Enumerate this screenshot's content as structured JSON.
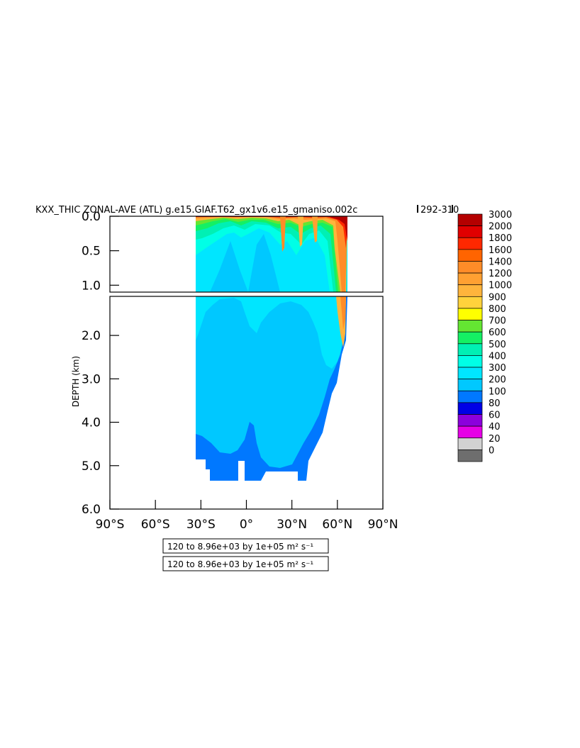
{
  "chart_data": {
    "type": "heatmap",
    "title": "KXX_THIC ZONAL-AVE (ATL) g.e15.GIAF.T62_gx1v6.e15_gmaniso.002c",
    "title_range": "292-310",
    "ylabel": "DEPTH (km)",
    "x_ticks": [
      "90°S",
      "60°S",
      "30°S",
      "0°",
      "30°N",
      "60°N",
      "90°N"
    ],
    "x_values": [
      -90,
      -60,
      -30,
      0,
      30,
      60,
      90
    ],
    "xlim": [
      -90,
      90
    ],
    "y_ticks_upper": [
      "0.0",
      "0.5",
      "1.0"
    ],
    "y_values_upper": [
      0.0,
      0.5,
      1.0
    ],
    "ylim_upper": [
      0.0,
      1.1
    ],
    "y_ticks_lower": [
      "2.0",
      "3.0",
      "4.0",
      "5.0",
      "6.0"
    ],
    "y_values_lower": [
      2.0,
      3.0,
      4.0,
      5.0,
      6.0
    ],
    "ylim_lower": [
      1.1,
      6.0
    ],
    "colorbar_levels": [
      "3000",
      "2000",
      "1800",
      "1600",
      "1400",
      "1200",
      "1000",
      "900",
      "800",
      "700",
      "600",
      "500",
      "400",
      "300",
      "200",
      "100",
      "80",
      "60",
      "40",
      "20",
      "0"
    ],
    "colorbar_colors": [
      "#b40000",
      "#e00000",
      "#ff2800",
      "#ff6400",
      "#ff8c28",
      "#ffa032",
      "#ffb43c",
      "#ffd23c",
      "#ffff00",
      "#64e632",
      "#14f064",
      "#00f0b4",
      "#00ffe6",
      "#00e6ff",
      "#00c8ff",
      "#0078ff",
      "#0000e6",
      "#8c00dc",
      "#e600e6",
      "#d2d2d2",
      "#6e6e6e"
    ],
    "info_boxes": [
      "120 to 8.96e+03 by 1e+05 m² s⁻¹",
      "120 to 8.96e+03 by 1e+05 m² s⁻¹"
    ]
  }
}
